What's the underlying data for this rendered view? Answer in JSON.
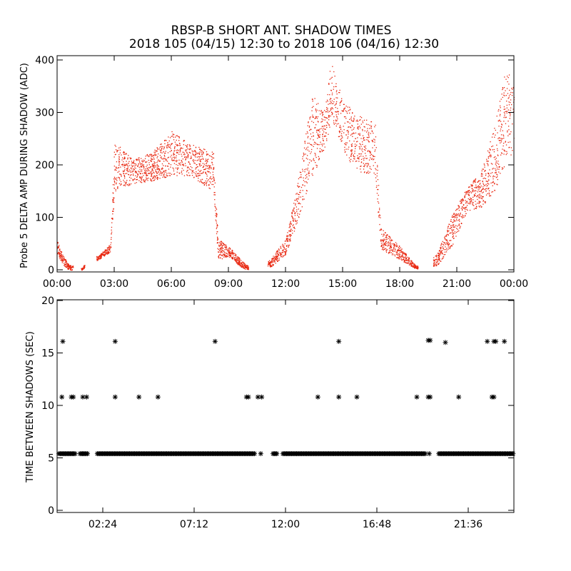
{
  "title": "RBSP-B SHORT ANT. SHADOW TIMES",
  "subtitle": "2018 105 (04/15) 12:30 to 2018 106 (04/16) 12:30",
  "colors": {
    "points": "#e8260f",
    "axes": "#000000",
    "background": "#ffffff"
  },
  "chart_data": [
    {
      "type": "scatter",
      "title": "RBSP-B SHORT ANT. SHADOW TIMES",
      "subtitle": "2018 105 (04/15) 12:30 to 2018 106 (04/16) 12:30",
      "ylabel": "Probe 5 DELTA AMP DURING SHADOW (ADC)",
      "xlabel": "",
      "x_unit": "hours",
      "xlim": [
        0,
        24
      ],
      "ylim": [
        0,
        400
      ],
      "x_ticks": [
        0,
        3,
        6,
        9,
        12,
        15,
        18,
        21,
        24
      ],
      "x_tick_labels": [
        "00:00",
        "03:00",
        "06:00",
        "09:00",
        "12:00",
        "15:00",
        "18:00",
        "21:00",
        "00:00"
      ],
      "y_ticks": [
        0,
        100,
        200,
        300,
        400
      ],
      "y_tick_labels": [
        "0",
        "100",
        "200",
        "300",
        "400"
      ],
      "grid": false,
      "series": [
        {
          "color": "#e8260f",
          "marker": "dot",
          "envelope": [
            {
              "x": 0.0,
              "lo": 30,
              "hi": 55
            },
            {
              "x": 0.3,
              "lo": 10,
              "hi": 28
            },
            {
              "x": 0.6,
              "lo": 0,
              "hi": 10
            },
            {
              "x": 1.3,
              "lo": 0,
              "hi": 3
            },
            {
              "x": 1.6,
              "lo": 10,
              "hi": 22
            },
            {
              "x": 2.2,
              "lo": 20,
              "hi": 28
            },
            {
              "x": 2.8,
              "lo": 35,
              "hi": 50
            },
            {
              "x": 3.0,
              "lo": 150,
              "hi": 245
            },
            {
              "x": 4.0,
              "lo": 165,
              "hi": 210
            },
            {
              "x": 5.0,
              "lo": 170,
              "hi": 225
            },
            {
              "x": 6.0,
              "lo": 180,
              "hi": 265
            },
            {
              "x": 7.0,
              "lo": 180,
              "hi": 240
            },
            {
              "x": 8.2,
              "lo": 150,
              "hi": 225
            },
            {
              "x": 8.45,
              "lo": 20,
              "hi": 60
            },
            {
              "x": 9.0,
              "lo": 25,
              "hi": 45
            },
            {
              "x": 9.8,
              "lo": 2,
              "hi": 14
            },
            {
              "x": 10.2,
              "lo": 0,
              "hi": 3
            },
            {
              "x": 11.2,
              "lo": 5,
              "hi": 20
            },
            {
              "x": 12.0,
              "lo": 30,
              "hi": 60
            },
            {
              "x": 12.6,
              "lo": 90,
              "hi": 160
            },
            {
              "x": 13.4,
              "lo": 180,
              "hi": 335
            },
            {
              "x": 14.0,
              "lo": 220,
              "hi": 300
            },
            {
              "x": 14.4,
              "lo": 290,
              "hi": 400
            },
            {
              "x": 15.0,
              "lo": 230,
              "hi": 330
            },
            {
              "x": 15.6,
              "lo": 190,
              "hi": 300
            },
            {
              "x": 16.7,
              "lo": 180,
              "hi": 280
            },
            {
              "x": 17.0,
              "lo": 40,
              "hi": 80
            },
            {
              "x": 18.0,
              "lo": 20,
              "hi": 45
            },
            {
              "x": 18.8,
              "lo": 3,
              "hi": 10
            },
            {
              "x": 19.3,
              "lo": 0,
              "hi": 3
            },
            {
              "x": 20.0,
              "lo": 10,
              "hi": 35
            },
            {
              "x": 20.8,
              "lo": 50,
              "hi": 110
            },
            {
              "x": 21.5,
              "lo": 110,
              "hi": 155
            },
            {
              "x": 22.3,
              "lo": 120,
              "hi": 190
            },
            {
              "x": 23.0,
              "lo": 150,
              "hi": 280
            },
            {
              "x": 23.6,
              "lo": 200,
              "hi": 390
            },
            {
              "x": 24.0,
              "lo": 230,
              "hi": 345
            }
          ],
          "gaps": [
            [
              0.85,
              1.25
            ],
            [
              1.45,
              2.05
            ],
            [
              10.05,
              11.05
            ],
            [
              18.95,
              19.75
            ]
          ]
        }
      ]
    },
    {
      "type": "scatter",
      "ylabel": "TIME BETWEEN SHADOWS (SEC)",
      "xlabel": "",
      "x_unit": "hours",
      "xlim": [
        0,
        24
      ],
      "ylim": [
        0,
        20
      ],
      "x_ticks": [
        2.4,
        7.2,
        12.0,
        16.8,
        21.6
      ],
      "x_tick_labels": [
        "02:24",
        "07:12",
        "12:00",
        "16:48",
        "21:36"
      ],
      "y_ticks": [
        0,
        5,
        10,
        15,
        20
      ],
      "y_tick_labels": [
        "0",
        "5",
        "10",
        "15",
        "20"
      ],
      "grid": false,
      "series": [
        {
          "color": "#000000",
          "marker": "asterisk",
          "baseline_value": 5.4,
          "baseline_x": [
            0.1,
            24.0
          ],
          "baseline_gaps": [
            [
              1.0,
              1.2
            ],
            [
              1.6,
              2.1
            ],
            [
              10.4,
              11.3
            ],
            [
              11.6,
              11.8
            ],
            [
              19.4,
              20.0
            ]
          ],
          "points": [
            {
              "x": 0.3,
              "y": 16.1
            },
            {
              "x": 0.25,
              "y": 10.8
            },
            {
              "x": 0.75,
              "y": 10.8
            },
            {
              "x": 0.85,
              "y": 10.8
            },
            {
              "x": 1.35,
              "y": 10.8
            },
            {
              "x": 1.55,
              "y": 10.8
            },
            {
              "x": 3.05,
              "y": 16.1
            },
            {
              "x": 3.05,
              "y": 10.8
            },
            {
              "x": 4.3,
              "y": 10.8
            },
            {
              "x": 5.3,
              "y": 10.8
            },
            {
              "x": 8.3,
              "y": 16.1
            },
            {
              "x": 9.95,
              "y": 10.8
            },
            {
              "x": 10.05,
              "y": 10.8
            },
            {
              "x": 10.55,
              "y": 10.8
            },
            {
              "x": 10.75,
              "y": 10.8
            },
            {
              "x": 13.7,
              "y": 10.8
            },
            {
              "x": 14.8,
              "y": 16.1
            },
            {
              "x": 14.8,
              "y": 10.8
            },
            {
              "x": 15.75,
              "y": 10.8
            },
            {
              "x": 18.9,
              "y": 10.8
            },
            {
              "x": 19.5,
              "y": 10.8
            },
            {
              "x": 19.6,
              "y": 10.8
            },
            {
              "x": 19.5,
              "y": 16.2
            },
            {
              "x": 19.6,
              "y": 16.2
            },
            {
              "x": 20.4,
              "y": 16.0
            },
            {
              "x": 21.1,
              "y": 10.8
            },
            {
              "x": 22.6,
              "y": 16.1
            },
            {
              "x": 22.95,
              "y": 16.1
            },
            {
              "x": 23.05,
              "y": 16.1
            },
            {
              "x": 23.5,
              "y": 16.1
            },
            {
              "x": 22.85,
              "y": 10.8
            },
            {
              "x": 22.95,
              "y": 10.8
            },
            {
              "x": 19.55,
              "y": 5.4
            },
            {
              "x": 10.7,
              "y": 5.4
            }
          ]
        }
      ]
    }
  ]
}
